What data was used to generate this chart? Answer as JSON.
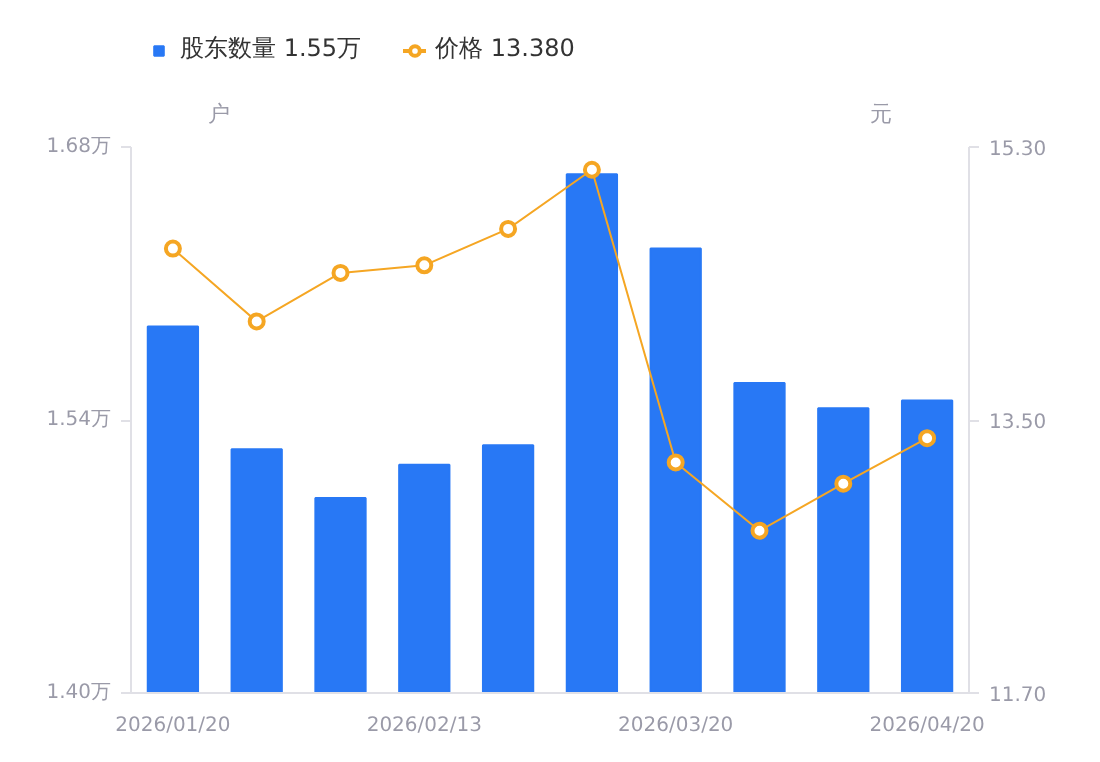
{
  "chart_data": {
    "type": "bar",
    "ylabel": "户",
    "y2label": "元",
    "categories": [
      "2026/01/20",
      null,
      null,
      "2026/02/13",
      null,
      null,
      "2026/03/20",
      null,
      null,
      "2026/04/20"
    ],
    "series": [
      {
        "name": "股东数量 1.55万",
        "color": "#2878f5",
        "values": [
          1.588,
          1.525,
          1.5,
          1.517,
          1.527,
          1.666,
          1.628,
          1.559,
          1.546,
          1.55
        ]
      },
      {
        "name": "价格 13.380",
        "type": "line",
        "axis": "y2",
        "color": "#f5a623",
        "values": [
          14.63,
          14.15,
          14.47,
          14.52,
          14.76,
          15.15,
          13.22,
          12.77,
          13.08,
          13.38
        ]
      }
    ],
    "ylim": [
      1.4,
      1.68
    ],
    "yticks": [
      {
        "value": 1.4,
        "label": "1.40万"
      },
      {
        "value": 1.54,
        "label": "1.54万"
      },
      {
        "value": 1.68,
        "label": "1.68万"
      }
    ],
    "y2lim": [
      11.7,
      15.3
    ],
    "y2ticks": [
      {
        "value": 11.7,
        "label": "11.70"
      },
      {
        "value": 13.5,
        "label": "13.50"
      },
      {
        "value": 15.3,
        "label": "15.30"
      }
    ],
    "grid": false,
    "legend": "top left",
    "marker": "circle",
    "line_style": "solid"
  }
}
